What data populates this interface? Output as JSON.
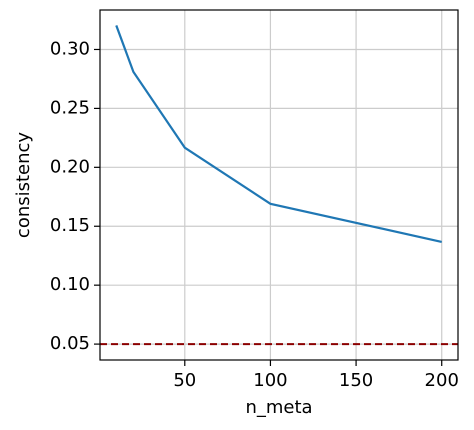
{
  "chart_data": {
    "type": "line",
    "x_label": "n_meta",
    "y_label": "consistency",
    "x": [
      10,
      20,
      50,
      100,
      200
    ],
    "series": [
      {
        "color": "#1f77b4",
        "values": [
          0.3204,
          0.281,
          0.2167,
          0.169,
          0.1367
        ]
      }
    ],
    "reference_line": {
      "value": 0.05,
      "color": "#8b0000",
      "dashed": true
    },
    "xlim": [
      0.5,
      209.5
    ],
    "xticks": [
      50,
      100,
      150,
      200
    ],
    "ylim": [
      0.0365,
      0.3335
    ],
    "yticks": [
      {
        "value": 0.05,
        "label": "0.05"
      },
      {
        "value": 0.1,
        "label": "0.10"
      },
      {
        "value": 0.15,
        "label": "0.15"
      },
      {
        "value": 0.2,
        "label": "0.20"
      },
      {
        "value": 0.25,
        "label": "0.25"
      },
      {
        "value": 0.3,
        "label": "0.30"
      }
    ],
    "grid": true
  }
}
